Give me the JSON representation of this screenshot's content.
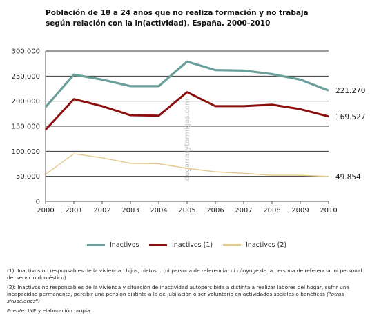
{
  "chart_data": {
    "type": "line",
    "title": "Población de 18 a 24 años que no realiza formación y no trabaja según relación con la in(actividad). España. 2000-2010",
    "x": [
      2000,
      2001,
      2002,
      2003,
      2004,
      2005,
      2006,
      2007,
      2008,
      2009,
      2010
    ],
    "x_tick_labels": [
      "2000",
      "2001",
      "2002",
      "2003",
      "2004",
      "2005",
      "2006",
      "2007",
      "2008",
      "2009",
      "2010"
    ],
    "ylim": [
      0,
      300000
    ],
    "y_ticks": [
      0,
      50000,
      100000,
      150000,
      200000,
      250000,
      300000
    ],
    "y_tick_labels": [
      "0",
      "50.000",
      "100.000",
      "150.000",
      "200.000",
      "250.000",
      "300.000"
    ],
    "grid": "horizontal",
    "legend_position": "bottom",
    "series": [
      {
        "name": "Inactivos",
        "color": "#6a9e9a",
        "values": [
          188000,
          253000,
          243000,
          230000,
          230000,
          279000,
          262000,
          261000,
          254000,
          243000,
          221270
        ],
        "end_label": "221.270"
      },
      {
        "name": "Inactivos (1)",
        "color": "#8b0f0f",
        "values": [
          143000,
          204000,
          190000,
          172000,
          171000,
          218000,
          190000,
          190000,
          193000,
          184000,
          169527
        ],
        "end_label": "169.527"
      },
      {
        "name": "Inactivos (2)",
        "color": "#e2c98b",
        "values": [
          54000,
          95000,
          87000,
          76000,
          75000,
          66000,
          59000,
          56000,
          52000,
          52000,
          49854
        ],
        "end_label": "49.854"
      }
    ]
  },
  "watermark": "degarrasytormigas.com",
  "notes": {
    "note1": "(1): Inactivos no responsables de la vivienda : hijos, nietos... (ni persona de referencia, ni cónyuge de la persona de referencia, ni personal del servicio doméstico)",
    "note2_main": "(2): Inactivos no responsables de la vivienda y situación de inactividad autopercibida a distinta a realizar labores del hogar, sufrir una incapacidad permanente, percibir una pensión distinta a la de jubilación o ser voluntario en actividades sociales o benéficas ",
    "note2_italic": "(\"otras situaciones\")",
    "source_label": "Fuente:",
    "source_text": " INE y elaboración propia"
  }
}
